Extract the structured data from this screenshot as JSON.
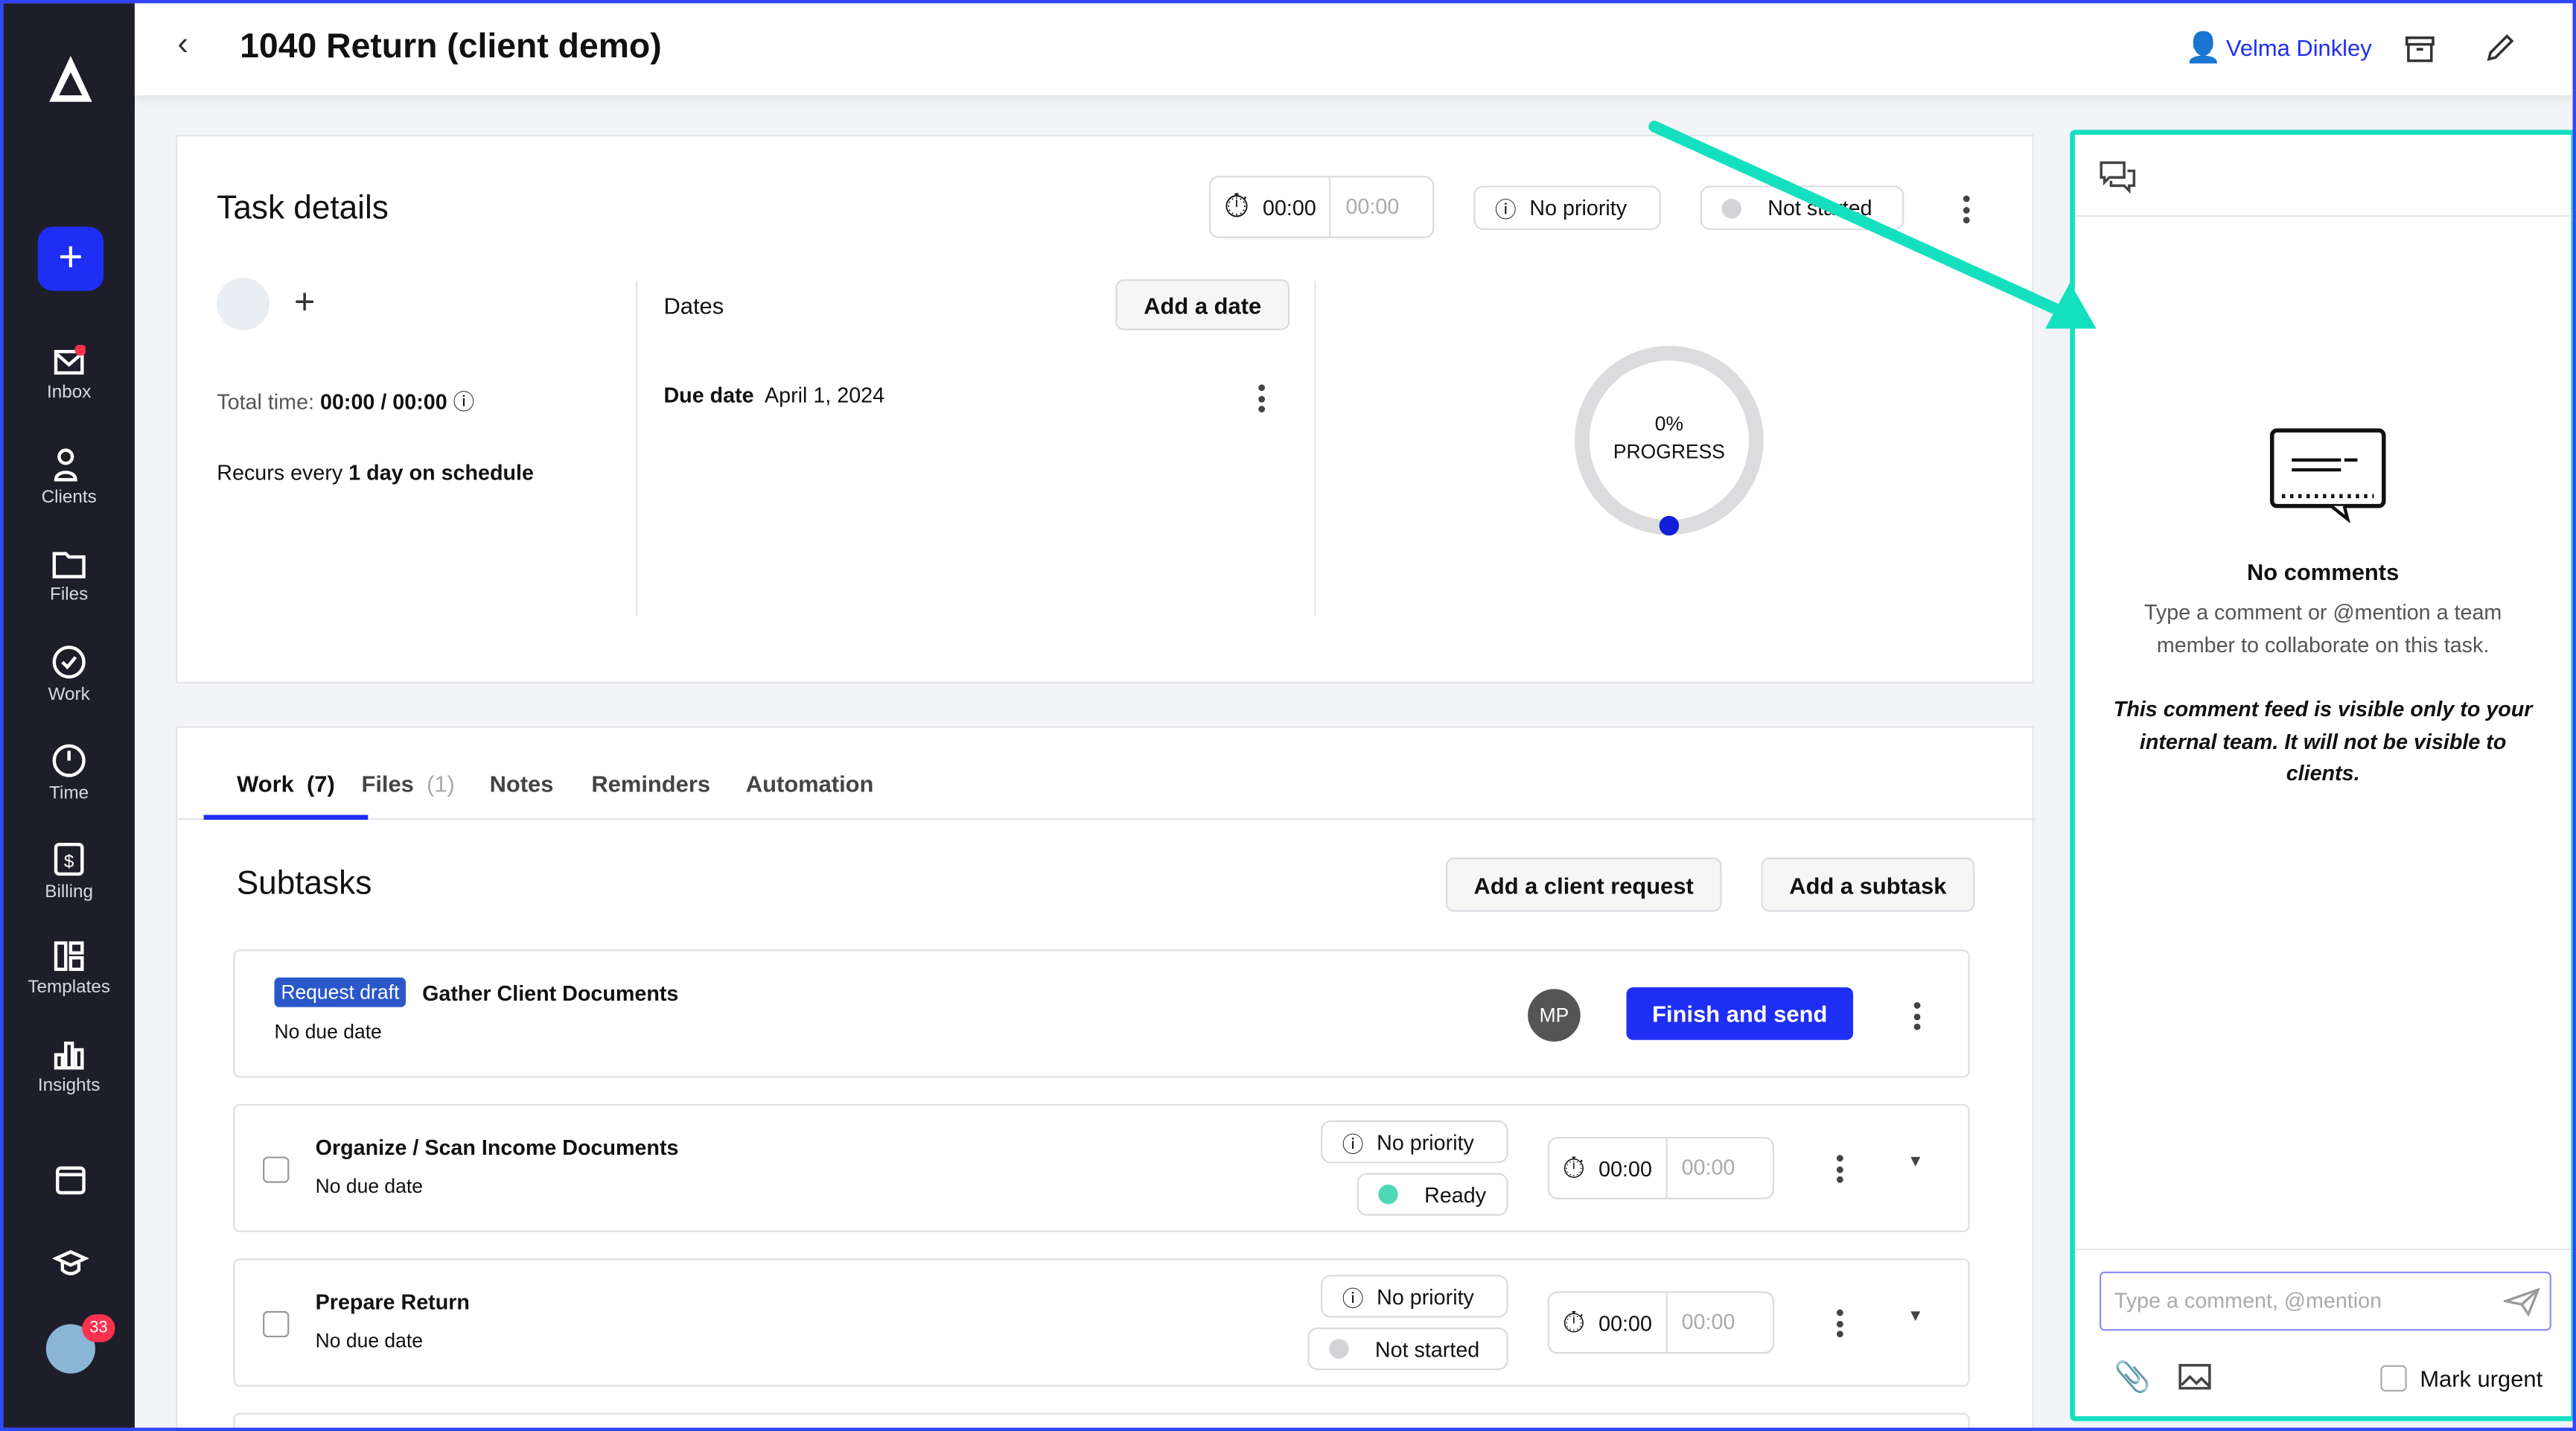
{
  "header": {
    "title": "1040 Return (client demo)",
    "user": "Velma Dinkley"
  },
  "sidebar": {
    "items": [
      {
        "label": "Inbox",
        "icon": "inbox-icon",
        "badge": true
      },
      {
        "label": "Clients"
      },
      {
        "label": "Files"
      },
      {
        "label": "Work"
      },
      {
        "label": "Time"
      },
      {
        "label": "Billing"
      },
      {
        "label": "Templates"
      },
      {
        "label": "Insights"
      }
    ],
    "avatar_badge": "33"
  },
  "task": {
    "title": "Task details",
    "timer": "00:00",
    "timer_est": "00:00",
    "priority": "No priority",
    "status": "Not started",
    "total_time_label": "Total time:",
    "total_time": "00:00 / 00:00",
    "recurs_prefix": "Recurs every",
    "recurs_value": "1 day on schedule",
    "dates_label": "Dates",
    "add_date": "Add a date",
    "due_label": "Due date",
    "due_value": "April 1, 2024",
    "progress_pct": "0%",
    "progress_label": "PROGRESS",
    "progress": 0
  },
  "tabs": [
    {
      "label": "Work",
      "count": "(7)",
      "active": true
    },
    {
      "label": "Files",
      "count": "(1)"
    },
    {
      "label": "Notes"
    },
    {
      "label": "Reminders"
    },
    {
      "label": "Automation"
    }
  ],
  "subtasks": {
    "title": "Subtasks",
    "add_request": "Add a client request",
    "add_subtask": "Add a subtask",
    "items": [
      {
        "badge": "Request draft",
        "name": "Gather Client Documents",
        "due": "No due date",
        "assignee": "MP",
        "action": "Finish and send"
      },
      {
        "name": "Organize / Scan Income Documents",
        "due": "No due date",
        "priority": "No priority",
        "status": "Ready",
        "timer": "00:00",
        "est": "00:00"
      },
      {
        "name": "Prepare Return",
        "due": "No due date",
        "priority": "No priority",
        "status": "Not started",
        "timer": "00:00",
        "est": "00:00"
      }
    ]
  },
  "comments": {
    "empty_title": "No comments",
    "empty_text": "Type a comment or @mention a team member to collaborate on this task.",
    "notice": "This comment feed is visible only to your internal team. It will not be visible to clients.",
    "placeholder": "Type a comment, @mention",
    "mark_urgent": "Mark urgent"
  },
  "colors": {
    "accent": "#1f2ef5",
    "highlight": "#14e0c0",
    "sidebar": "#1e1e2a",
    "ready": "#4fd8b4"
  }
}
